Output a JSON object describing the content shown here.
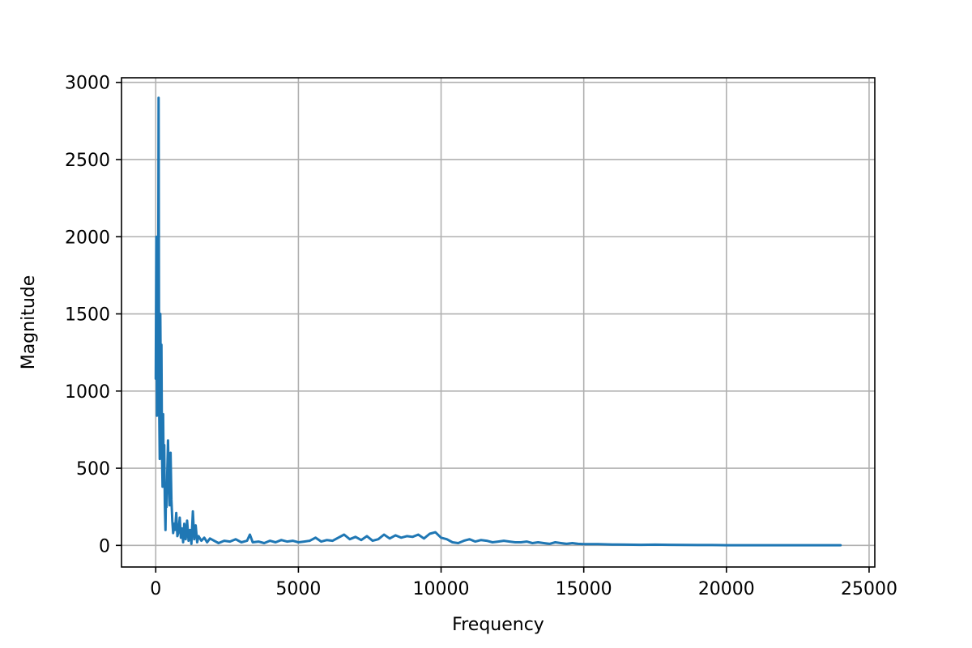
{
  "chart_data": {
    "type": "line",
    "title": "",
    "xlabel": "Frequency",
    "ylabel": "Magnitude",
    "xlim": [
      -1200,
      25200
    ],
    "ylim": [
      -140,
      3030
    ],
    "xticks": [
      0,
      5000,
      10000,
      15000,
      20000,
      25000
    ],
    "yticks": [
      0,
      500,
      1000,
      1500,
      2000,
      2500,
      3000
    ],
    "xtick_labels": [
      "0",
      "5000",
      "10000",
      "15000",
      "20000",
      "25000"
    ],
    "ytick_labels": [
      "0",
      "500",
      "1000",
      "1500",
      "2000",
      "2500",
      "3000"
    ],
    "grid": true,
    "series": [
      {
        "color": "#1f77b4",
        "x": [
          0,
          20,
          40,
          60,
          80,
          100,
          120,
          140,
          160,
          180,
          200,
          220,
          240,
          260,
          280,
          300,
          320,
          340,
          360,
          380,
          400,
          430,
          460,
          490,
          520,
          550,
          580,
          610,
          640,
          680,
          720,
          760,
          800,
          840,
          880,
          920,
          960,
          1000,
          1050,
          1100,
          1150,
          1200,
          1250,
          1300,
          1350,
          1400,
          1450,
          1500,
          1600,
          1700,
          1800,
          1900,
          2000,
          2200,
          2400,
          2600,
          2800,
          3000,
          3200,
          3300,
          3400,
          3600,
          3800,
          4000,
          4200,
          4400,
          4600,
          4800,
          5000,
          5200,
          5400,
          5600,
          5800,
          6000,
          6200,
          6400,
          6600,
          6800,
          7000,
          7200,
          7400,
          7600,
          7800,
          8000,
          8200,
          8400,
          8600,
          8800,
          9000,
          9200,
          9400,
          9600,
          9800,
          10000,
          10200,
          10400,
          10600,
          10800,
          11000,
          11200,
          11400,
          11600,
          11800,
          12000,
          12200,
          12400,
          12600,
          12800,
          13000,
          13200,
          13400,
          13600,
          13800,
          14000,
          14200,
          14400,
          14600,
          14800,
          15000,
          15500,
          16000,
          16500,
          17000,
          17500,
          18000,
          18500,
          19000,
          19500,
          20000,
          21000,
          22000,
          23000,
          24000
        ],
        "y": [
          1080,
          2000,
          840,
          1500,
          1000,
          2900,
          900,
          560,
          1500,
          1000,
          1300,
          600,
          380,
          850,
          450,
          650,
          270,
          100,
          380,
          250,
          450,
          680,
          420,
          260,
          600,
          300,
          160,
          80,
          140,
          100,
          210,
          60,
          90,
          180,
          50,
          110,
          20,
          140,
          40,
          160,
          30,
          100,
          10,
          220,
          40,
          130,
          20,
          60,
          30,
          50,
          20,
          45,
          35,
          15,
          30,
          25,
          40,
          20,
          30,
          70,
          20,
          25,
          15,
          30,
          20,
          35,
          25,
          30,
          20,
          25,
          30,
          50,
          25,
          35,
          30,
          50,
          70,
          40,
          55,
          35,
          60,
          30,
          40,
          70,
          45,
          65,
          50,
          60,
          55,
          70,
          45,
          75,
          85,
          50,
          40,
          20,
          15,
          30,
          40,
          25,
          35,
          30,
          20,
          25,
          30,
          25,
          20,
          20,
          25,
          15,
          20,
          15,
          10,
          20,
          15,
          10,
          15,
          10,
          8,
          8,
          6,
          5,
          4,
          5,
          4,
          3,
          2,
          2,
          1,
          1,
          1,
          1,
          1
        ]
      }
    ]
  }
}
